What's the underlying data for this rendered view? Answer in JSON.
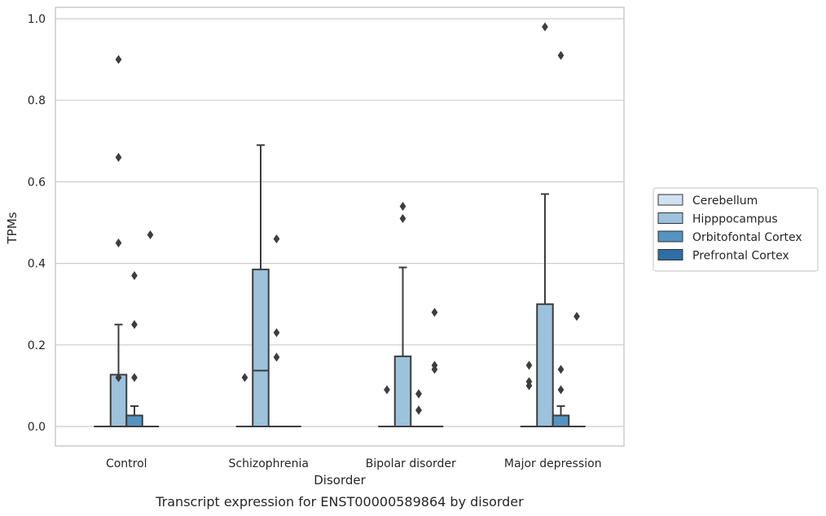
{
  "chart_data": {
    "type": "box",
    "caption": "Transcript expression for ENST00000589864 by disorder",
    "xlabel": "Disorder",
    "ylabel": "TPMs",
    "ylim": [
      -0.045,
      1.03
    ],
    "yticks": [
      "0.0",
      "0.2",
      "0.4",
      "0.6",
      "0.8",
      "1.0"
    ],
    "ytick_values": [
      0.0,
      0.2,
      0.4,
      0.6,
      0.8,
      1.0
    ],
    "grid": true,
    "legend_position": "right",
    "categories": [
      "Control",
      "Schizophrenia",
      "Bipolar disorder",
      "Major depression"
    ],
    "series": [
      {
        "name": "Cerebellum",
        "color": "#d0e1f2",
        "boxes": [
          {
            "q1": 0,
            "median": 0,
            "q3": 0,
            "whisker_low": 0,
            "whisker_high": 0,
            "fliers": []
          },
          {
            "q1": 0,
            "median": 0,
            "q3": 0,
            "whisker_low": 0,
            "whisker_high": 0,
            "fliers": []
          },
          {
            "q1": 0,
            "median": 0,
            "q3": 0,
            "whisker_low": 0,
            "whisker_high": 0,
            "fliers": []
          },
          {
            "q1": 0,
            "median": 0,
            "q3": 0,
            "whisker_low": 0,
            "whisker_high": 0,
            "fliers": [
              0.1,
              0.11,
              0.15
            ]
          }
        ]
      },
      {
        "name": "Hipppocampus",
        "color": "#9cc2dc",
        "boxes": [
          {
            "q1": 0,
            "median": 0,
            "q3": 0.127,
            "whisker_low": 0,
            "whisker_high": 0.25,
            "fliers": [
              0.12,
              0.45,
              0.66,
              0.9
            ]
          },
          {
            "q1": 0,
            "median": 0.137,
            "q3": 0.385,
            "whisker_low": 0,
            "whisker_high": 0.69,
            "fliers": []
          },
          {
            "q1": 0,
            "median": 0,
            "q3": 0.172,
            "whisker_low": 0,
            "whisker_high": 0.39,
            "fliers": [
              0.51,
              0.54
            ]
          },
          {
            "q1": 0,
            "median": 0,
            "q3": 0.3,
            "whisker_low": 0,
            "whisker_high": 0.57,
            "fliers": [
              0.98
            ]
          }
        ]
      },
      {
        "name": "Orbitofontal Cortex",
        "color": "#5593c0",
        "boxes": [
          {
            "q1": 0,
            "median": 0,
            "q3": 0.027,
            "whisker_low": 0,
            "whisker_high": 0.05,
            "fliers": [
              0.12,
              0.25,
              0.37
            ]
          },
          {
            "q1": 0,
            "median": 0,
            "q3": 0,
            "whisker_low": 0,
            "whisker_high": 0,
            "fliers": [
              0.17,
              0.23,
              0.46
            ]
          },
          {
            "q1": 0,
            "median": 0,
            "q3": 0,
            "whisker_low": 0,
            "whisker_high": 0,
            "fliers": [
              0.04,
              0.08
            ]
          },
          {
            "q1": 0,
            "median": 0,
            "q3": 0.027,
            "whisker_low": 0,
            "whisker_high": 0.05,
            "fliers": [
              0.09,
              0.14,
              0.91
            ]
          }
        ]
      },
      {
        "name": "Prefrontal Cortex",
        "color": "#2e6da5",
        "boxes": [
          {
            "q1": 0,
            "median": 0,
            "q3": 0,
            "whisker_low": 0,
            "whisker_high": 0,
            "fliers": [
              0.47
            ]
          },
          {
            "q1": 0,
            "median": 0,
            "q3": 0,
            "whisker_low": 0,
            "whisker_high": 0,
            "fliers": []
          },
          {
            "q1": 0,
            "median": 0,
            "q3": 0,
            "whisker_low": 0,
            "whisker_high": 0,
            "fliers": [
              0.14,
              0.15,
              0.28
            ]
          },
          {
            "q1": 0,
            "median": 0,
            "q3": 0,
            "whisker_low": 0,
            "whisker_high": 0,
            "fliers": [
              0.27
            ]
          }
        ]
      }
    ],
    "extra_fliers": [
      {
        "category_index": 0,
        "series_index": 1,
        "value": 0.12
      },
      {
        "category_index": 1,
        "series_index": 0,
        "value": 0.12
      },
      {
        "category_index": 2,
        "series_index": 0,
        "value": 0.09
      },
      {
        "category_index": 2,
        "series_index": 2,
        "value": 0.04
      },
      {
        "category_index": 2,
        "series_index": 2,
        "value": 0.08
      }
    ]
  }
}
